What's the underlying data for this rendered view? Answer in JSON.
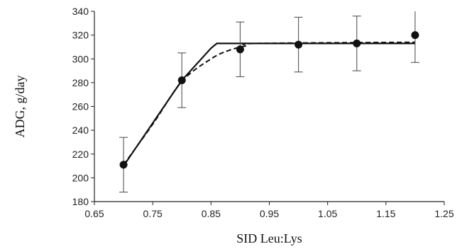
{
  "chart_data": {
    "type": "scatter",
    "xlabel": "SID Leu:Lys",
    "ylabel": "ADG, g/day",
    "xlim": [
      0.65,
      1.25
    ],
    "ylim": [
      180,
      340
    ],
    "xticks": [
      "0.65",
      "0.75",
      "0.85",
      "0.95",
      "1.05",
      "1.15",
      "1.25"
    ],
    "yticks": [
      "180",
      "200",
      "220",
      "240",
      "260",
      "280",
      "300",
      "320",
      "340"
    ],
    "grid": false,
    "legend": "none",
    "points": {
      "x": [
        0.7,
        0.8,
        0.9,
        1.0,
        1.1,
        1.2
      ],
      "y": [
        211,
        282,
        308,
        312,
        313,
        320
      ],
      "error": [
        23,
        23,
        23,
        23,
        23,
        23
      ]
    },
    "fits": [
      {
        "style": "solid",
        "x": [
          0.7,
          0.8,
          0.85,
          0.86,
          1.2
        ],
        "y": [
          210,
          282,
          309,
          313,
          313
        ]
      },
      {
        "style": "dashed",
        "x": [
          0.7,
          0.75,
          0.8,
          0.85,
          0.88,
          0.91,
          0.93,
          1.2
        ],
        "y": [
          211,
          245,
          281,
          300,
          307,
          311,
          313,
          314
        ]
      }
    ]
  }
}
